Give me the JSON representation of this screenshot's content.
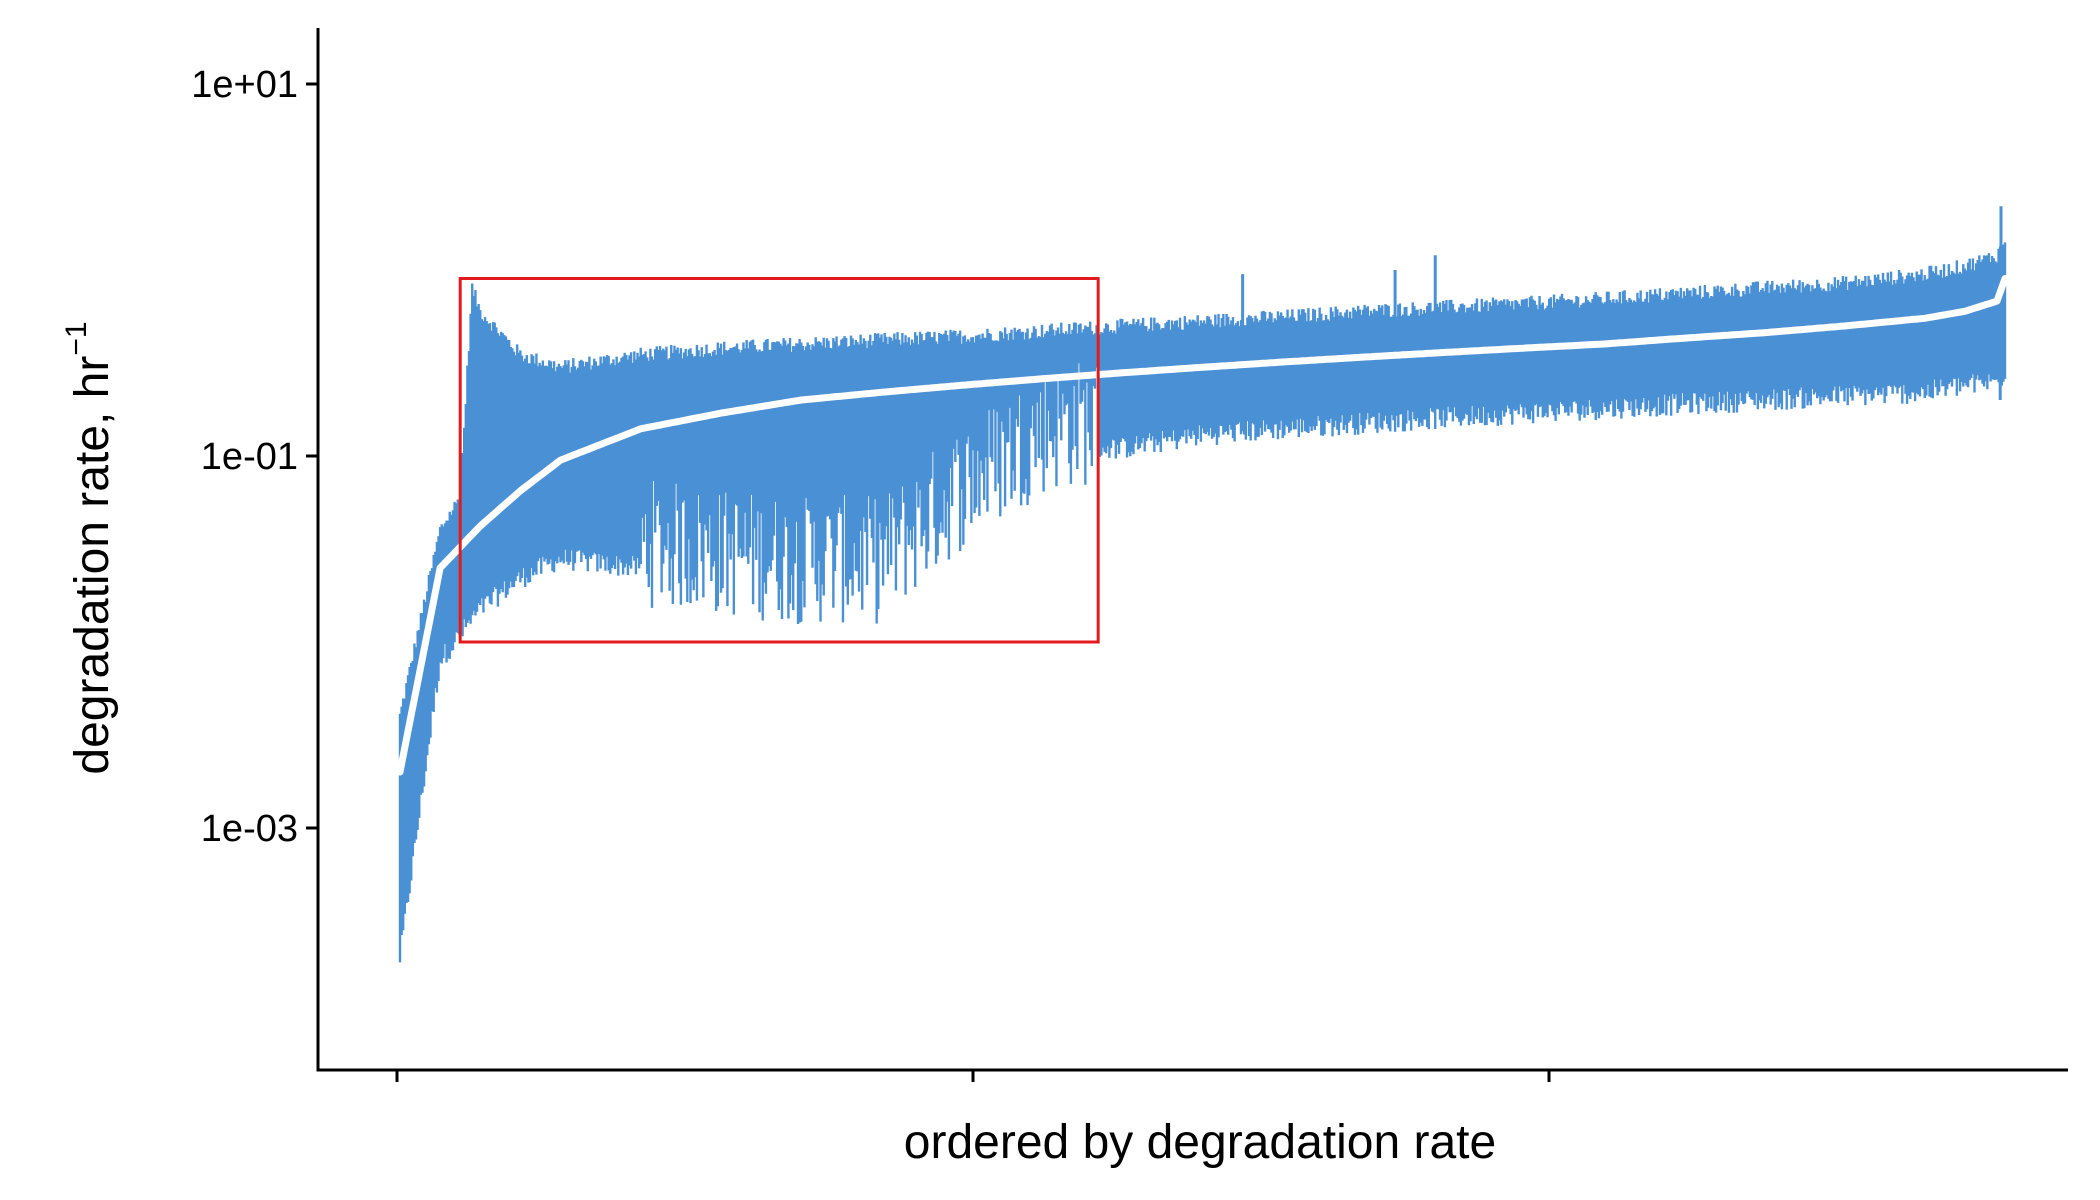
{
  "chart_data": {
    "type": "line",
    "title": "",
    "xlabel": "ordered by degradation rate",
    "ylabel": {
      "text": "degradation rate, hr",
      "superscript": "−1"
    },
    "y_scale": "log10",
    "ylim": [
      5e-05,
      20
    ],
    "y_ticks": [
      {
        "value": 10,
        "label": "1e+01"
      },
      {
        "value": 0.1,
        "label": "1e-01"
      },
      {
        "value": 0.001,
        "label": "1e-03"
      }
    ],
    "x_ticks_labeled": false,
    "grid": false,
    "legend": "none",
    "n_points": 2000,
    "colors": {
      "interval": "#4a90d5",
      "estimate": "#ffffff",
      "highlight": "#e31a1c"
    },
    "series": [
      {
        "role": "point-estimate",
        "x": [
          0,
          50,
          100,
          150,
          200,
          300,
          400,
          500,
          600,
          700,
          800,
          900,
          1000,
          1100,
          1200,
          1300,
          1400,
          1500,
          1600,
          1700,
          1800,
          1900,
          1950,
          1990,
          2000
        ],
        "y": [
          0.002,
          0.025,
          0.042,
          0.065,
          0.095,
          0.14,
          0.17,
          0.2,
          0.22,
          0.24,
          0.26,
          0.28,
          0.3,
          0.32,
          0.34,
          0.36,
          0.38,
          0.4,
          0.43,
          0.46,
          0.5,
          0.55,
          0.6,
          0.68,
          0.9
        ]
      },
      {
        "role": "interval-upper",
        "x": [
          0,
          50,
          75,
          90,
          100,
          150,
          200,
          300,
          400,
          500,
          600,
          700,
          800,
          900,
          1000,
          1100,
          1200,
          1300,
          1400,
          1500,
          1600,
          1700,
          1800,
          1900,
          1950,
          1990,
          2000
        ],
        "y": [
          0.004,
          0.04,
          0.06,
          0.8,
          0.6,
          0.35,
          0.3,
          0.35,
          0.38,
          0.4,
          0.42,
          0.44,
          0.47,
          0.5,
          0.53,
          0.56,
          0.6,
          0.63,
          0.66,
          0.7,
          0.75,
          0.8,
          0.85,
          0.95,
          1.05,
          1.2,
          1.4
        ]
      },
      {
        "role": "interval-lower",
        "x": [
          0,
          50,
          100,
          150,
          200,
          300,
          400,
          500,
          600,
          700,
          800,
          850,
          900,
          1000,
          1100,
          1200,
          1300,
          1400,
          1500,
          1600,
          1700,
          1800,
          1900,
          1950,
          1990,
          2000
        ],
        "y": [
          0.0002,
          0.008,
          0.015,
          0.022,
          0.028,
          0.025,
          0.022,
          0.02,
          0.02,
          0.05,
          0.1,
          0.11,
          0.11,
          0.13,
          0.14,
          0.15,
          0.16,
          0.17,
          0.18,
          0.19,
          0.2,
          0.21,
          0.22,
          0.24,
          0.25,
          0.28
        ]
      }
    ],
    "highlight_box": {
      "x_range": [
        75,
        870
      ],
      "y_range": [
        0.01,
        0.9
      ]
    },
    "annotation_spikes": [
      {
        "x": 1050,
        "y": 0.95
      },
      {
        "x": 1240,
        "y": 1.0
      },
      {
        "x": 1290,
        "y": 1.2
      },
      {
        "x": 1995,
        "y": 2.2
      },
      {
        "x": 1994,
        "y": 0.2
      }
    ]
  }
}
